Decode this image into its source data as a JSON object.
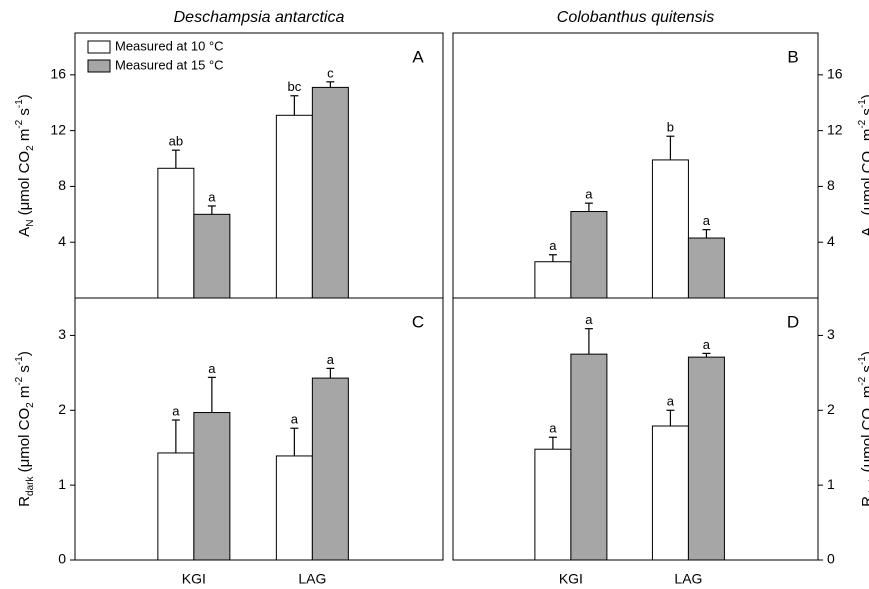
{
  "chart_data": [
    {
      "type": "bar",
      "title": "Deschampsia antarctica",
      "panel_label": "A",
      "axis_side": "left",
      "legend": true,
      "ylabel": [
        {
          "text": "A"
        },
        {
          "text": "N",
          "shift": "sub"
        },
        {
          "text": " (μmol CO"
        },
        {
          "text": "2",
          "shift": "sub"
        },
        {
          "text": " m"
        },
        {
          "text": "-2",
          "shift": "sup"
        },
        {
          "text": " s"
        },
        {
          "text": "-1",
          "shift": "sup"
        },
        {
          "text": ")"
        }
      ],
      "categories": [
        null,
        null
      ],
      "ylim": [
        0,
        19
      ],
      "yticks": [
        4,
        8,
        12,
        16
      ],
      "series": [
        {
          "name": "Measured at 10 °C",
          "color": "#ffffff",
          "values": [
            9.3,
            13.1
          ],
          "errors": [
            1.3,
            1.4
          ],
          "letters": [
            "ab",
            "bc"
          ]
        },
        {
          "name": "Measured at 15 °C",
          "color": "#a6a6a6",
          "values": [
            6.0,
            15.1
          ],
          "errors": [
            0.6,
            0.4
          ],
          "letters": [
            "a",
            "c"
          ]
        }
      ]
    },
    {
      "type": "bar",
      "title": "Colobanthus quitensis",
      "panel_label": "B",
      "axis_side": "right",
      "ylabel": [
        {
          "text": "A"
        },
        {
          "text": "N",
          "shift": "sub"
        },
        {
          "text": " (μmol CO"
        },
        {
          "text": "2",
          "shift": "sub"
        },
        {
          "text": " m"
        },
        {
          "text": "-2",
          "shift": "sup"
        },
        {
          "text": " s"
        },
        {
          "text": "-1",
          "shift": "sup"
        },
        {
          "text": ")"
        }
      ],
      "categories": [
        null,
        null
      ],
      "ylim": [
        0,
        19
      ],
      "yticks": [
        4,
        8,
        12,
        16
      ],
      "series": [
        {
          "color": "#ffffff",
          "values": [
            2.6,
            9.9
          ],
          "errors": [
            0.5,
            1.7
          ],
          "letters": [
            "a",
            "b"
          ]
        },
        {
          "color": "#a6a6a6",
          "values": [
            6.2,
            4.3
          ],
          "errors": [
            0.6,
            0.6
          ],
          "letters": [
            "a",
            "a"
          ]
        }
      ]
    },
    {
      "type": "bar",
      "panel_label": "C",
      "axis_side": "left",
      "ylabel": [
        {
          "text": "R"
        },
        {
          "text": "dark",
          "shift": "sub"
        },
        {
          "text": " (μmol CO"
        },
        {
          "text": "2",
          "shift": "sub"
        },
        {
          "text": " m"
        },
        {
          "text": "-2",
          "shift": "sup"
        },
        {
          "text": " s"
        },
        {
          "text": "-1",
          "shift": "sup"
        },
        {
          "text": ")"
        }
      ],
      "categories": [
        "KGI",
        "LAG"
      ],
      "ylim": [
        0,
        3.5
      ],
      "yticks": [
        0,
        1,
        2,
        3
      ],
      "series": [
        {
          "color": "#ffffff",
          "values": [
            1.43,
            1.39
          ],
          "errors": [
            0.44,
            0.37
          ],
          "letters": [
            "a",
            "a"
          ]
        },
        {
          "color": "#a6a6a6",
          "values": [
            1.97,
            2.43
          ],
          "errors": [
            0.47,
            0.13
          ],
          "letters": [
            "a",
            "a"
          ]
        }
      ]
    },
    {
      "type": "bar",
      "panel_label": "D",
      "axis_side": "right",
      "ylabel": [
        {
          "text": "R"
        },
        {
          "text": "dark",
          "shift": "sub"
        },
        {
          "text": " (μmol CO"
        },
        {
          "text": "2",
          "shift": "sub"
        },
        {
          "text": " m"
        },
        {
          "text": "-2",
          "shift": "sup"
        },
        {
          "text": " s"
        },
        {
          "text": "-1",
          "shift": "sup"
        },
        {
          "text": ")"
        }
      ],
      "categories": [
        "KGI",
        "LAG"
      ],
      "ylim": [
        0,
        3.5
      ],
      "yticks": [
        0,
        1,
        2,
        3
      ],
      "series": [
        {
          "color": "#ffffff",
          "values": [
            1.48,
            1.79
          ],
          "errors": [
            0.16,
            0.21
          ],
          "letters": [
            "a",
            "a"
          ]
        },
        {
          "color": "#a6a6a6",
          "values": [
            2.75,
            2.71
          ],
          "errors": [
            0.34,
            0.05
          ],
          "letters": [
            "a",
            "a"
          ]
        }
      ]
    }
  ]
}
